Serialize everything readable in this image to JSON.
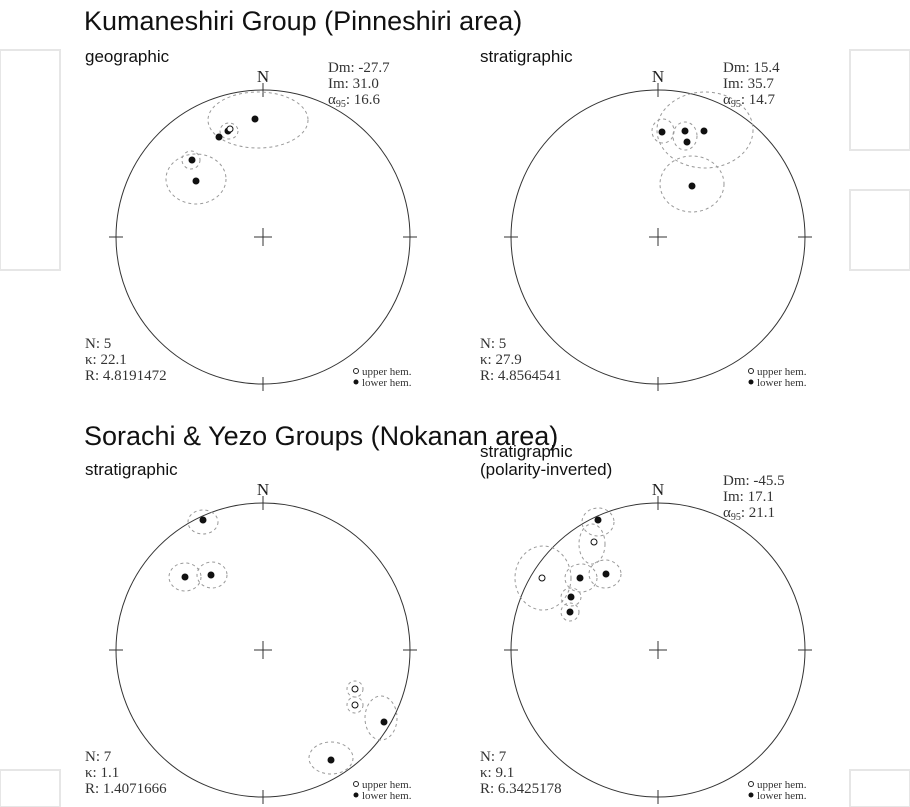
{
  "sections": [
    {
      "title": "Kumaneshiri Group (Pinneshiri area)",
      "panels": [
        {
          "label": [
            "geographic"
          ],
          "north": "N",
          "dm": "Dm: -27.7",
          "im": "Im: 31.0",
          "a95_symbol": "α",
          "a95_sub": "95",
          "a95_value": ": 16.6",
          "n": "N: 5",
          "kappa": "κ: 22.1",
          "r": "R: 4.8191472",
          "upper": "upper hem.",
          "lower": "lower hem."
        },
        {
          "label": [
            "stratigraphic"
          ],
          "north": "N",
          "dm": "Dm: 15.4",
          "im": "Im: 35.7",
          "a95_symbol": "α",
          "a95_sub": "95",
          "a95_value": ": 14.7",
          "n": "N: 5",
          "kappa": "κ: 27.9",
          "r": "R: 4.8564541",
          "upper": "upper hem.",
          "lower": "lower hem."
        }
      ]
    },
    {
      "title": "Sorachi & Yezo Groups (Nokanan area)",
      "panels": [
        {
          "label": [
            "stratigraphic"
          ],
          "north": "N",
          "n": "N: 7",
          "kappa": "κ: 1.1",
          "r": "R: 1.4071666",
          "upper": "upper hem.",
          "lower": "lower hem."
        },
        {
          "label": [
            "stratigraphic",
            "(polarity-inverted)"
          ],
          "north": "N",
          "dm": "Dm: -45.5",
          "im": "Im: 17.1",
          "a95_symbol": "α",
          "a95_sub": "95",
          "a95_value": ": 21.1",
          "n": "N: 7",
          "kappa": "κ: 9.1",
          "r": "R: 6.3425178",
          "upper": "upper hem.",
          "lower": "lower hem."
        }
      ]
    }
  ]
}
